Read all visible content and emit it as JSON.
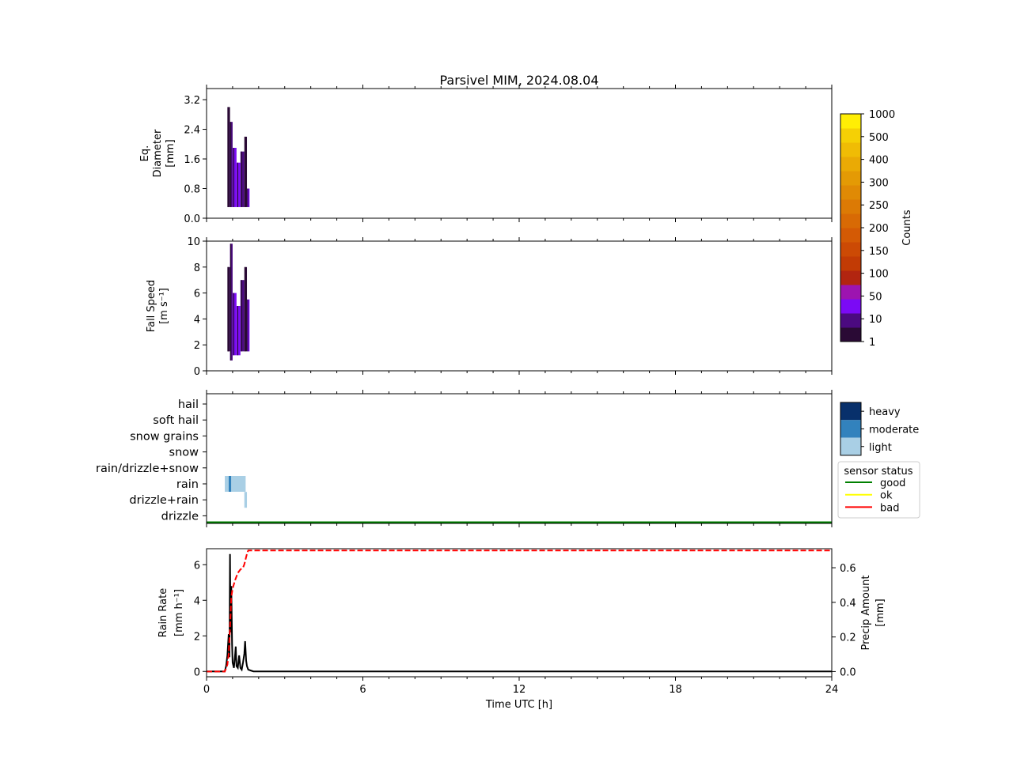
{
  "title": "Parsivel MIM, 2024.08.04",
  "chart_data": [
    {
      "id": "diameter",
      "type": "heatmap",
      "ylabel_lines": [
        "Eq.",
        "Diameter",
        "[mm]"
      ],
      "xlim": [
        0,
        24
      ],
      "ylim": [
        0,
        3.5
      ],
      "yticks": [
        0.0,
        0.8,
        1.6,
        2.4,
        3.2
      ],
      "ytick_labels": [
        "0.0",
        "0.8",
        "1.6",
        "2.4",
        "3.2"
      ],
      "description_cells": [
        {
          "x": 0.8,
          "w": 0.1,
          "y0": 0.3,
          "y1": 3.0,
          "level": 1
        },
        {
          "x": 0.9,
          "w": 0.1,
          "y0": 0.3,
          "y1": 2.6,
          "level": 2
        },
        {
          "x": 1.0,
          "w": 0.15,
          "y0": 0.3,
          "y1": 1.9,
          "level": 3
        },
        {
          "x": 1.15,
          "w": 0.15,
          "y0": 0.3,
          "y1": 1.5,
          "level": 3
        },
        {
          "x": 1.3,
          "w": 0.15,
          "y0": 0.3,
          "y1": 1.8,
          "level": 2
        },
        {
          "x": 1.45,
          "w": 0.1,
          "y0": 0.3,
          "y1": 2.2,
          "level": 1
        },
        {
          "x": 1.55,
          "w": 0.1,
          "y0": 0.3,
          "y1": 0.8,
          "level": 3
        }
      ]
    },
    {
      "id": "fallspeed",
      "type": "heatmap",
      "ylabel_lines": [
        "Fall Speed",
        "[m s⁻¹]"
      ],
      "xlim": [
        0,
        24
      ],
      "ylim": [
        0,
        10
      ],
      "yticks": [
        0,
        2,
        4,
        6,
        8,
        10
      ],
      "ytick_labels": [
        "0",
        "2",
        "4",
        "6",
        "8",
        "10"
      ],
      "description_cells": [
        {
          "x": 0.8,
          "w": 0.1,
          "y0": 1.5,
          "y1": 8.0,
          "level": 1
        },
        {
          "x": 0.9,
          "w": 0.1,
          "y0": 0.8,
          "y1": 9.8,
          "level": 2
        },
        {
          "x": 1.0,
          "w": 0.15,
          "y0": 1.2,
          "y1": 6.0,
          "level": 3
        },
        {
          "x": 1.15,
          "w": 0.15,
          "y0": 1.2,
          "y1": 5.0,
          "level": 3
        },
        {
          "x": 1.3,
          "w": 0.15,
          "y0": 1.5,
          "y1": 7.0,
          "level": 2
        },
        {
          "x": 1.45,
          "w": 0.1,
          "y0": 1.5,
          "y1": 8.0,
          "level": 1
        },
        {
          "x": 1.55,
          "w": 0.1,
          "y0": 1.5,
          "y1": 5.5,
          "level": 3
        }
      ]
    },
    {
      "id": "ptype",
      "type": "heatmap",
      "xlim": [
        0,
        24
      ],
      "categories": [
        "hail",
        "soft hail",
        "snow grains",
        "snow",
        "rain/drizzle+snow",
        "rain",
        "drizzle+rain",
        "drizzle"
      ],
      "cells": [
        {
          "x0": 0.7,
          "x1": 0.85,
          "category": "rain",
          "intensity": "light"
        },
        {
          "x0": 0.85,
          "x1": 0.95,
          "category": "rain",
          "intensity": "moderate"
        },
        {
          "x0": 0.95,
          "x1": 1.5,
          "category": "rain",
          "intensity": "light"
        },
        {
          "x0": 1.45,
          "x1": 1.55,
          "category": "drizzle+rain",
          "intensity": "light"
        }
      ],
      "intensity_legend": {
        "labels": [
          "heavy",
          "moderate",
          "light"
        ],
        "colors": [
          "#08306b",
          "#3282bd",
          "#a9cfe5"
        ]
      },
      "status_legend": {
        "title": "sensor status",
        "entries": [
          {
            "label": "good",
            "color": "#008000"
          },
          {
            "label": "ok",
            "color": "#ffff00"
          },
          {
            "label": "bad",
            "color": "#ff0000"
          }
        ]
      },
      "status_series": [
        {
          "x0": 0,
          "x1": 24,
          "status": "good"
        }
      ]
    },
    {
      "id": "rainrate",
      "type": "line",
      "xlabel": "Time UTC [h]",
      "ylabel_lines": [
        "Rain Rate",
        "[mm h⁻¹]"
      ],
      "y2label_lines": [
        "Precip Amount",
        "[mm]"
      ],
      "xlim": [
        0,
        24
      ],
      "xticks": [
        0,
        6,
        12,
        18,
        24
      ],
      "xtick_labels": [
        "0",
        "6",
        "12",
        "18",
        "24"
      ],
      "ylim": [
        -0.3,
        6.9
      ],
      "yticks": [
        0,
        2,
        4,
        6
      ],
      "ytick_labels": [
        "0",
        "2",
        "4",
        "6"
      ],
      "y2lim": [
        -0.03,
        0.71
      ],
      "y2ticks": [
        0.0,
        0.2,
        0.4,
        0.6
      ],
      "y2tick_labels": [
        "0.0",
        "0.2",
        "0.4",
        "0.6"
      ],
      "series": [
        {
          "axis": "left",
          "color": "#000000",
          "dash": "solid",
          "x": [
            0,
            0.7,
            0.75,
            0.8,
            0.85,
            0.88,
            0.9,
            0.92,
            0.95,
            0.98,
            1.0,
            1.05,
            1.1,
            1.12,
            1.15,
            1.2,
            1.25,
            1.3,
            1.35,
            1.4,
            1.45,
            1.48,
            1.52,
            1.55,
            1.6,
            1.7,
            1.8,
            24
          ],
          "y": [
            0,
            0,
            0.3,
            0.9,
            2.1,
            0.8,
            6.6,
            2.2,
            4.8,
            1.5,
            0.5,
            0.2,
            1.0,
            1.4,
            0.3,
            0.2,
            0.9,
            0.2,
            0.1,
            0.5,
            1.0,
            1.7,
            0.6,
            0.3,
            0.1,
            0.05,
            0,
            0
          ]
        },
        {
          "axis": "right",
          "color": "#ff0000",
          "dash": "dashed",
          "x": [
            0,
            0.7,
            0.8,
            0.85,
            0.9,
            0.95,
            1.0,
            1.1,
            1.2,
            1.3,
            1.4,
            1.45,
            1.5,
            1.55,
            1.6,
            24
          ],
          "y": [
            0,
            0,
            0.04,
            0.1,
            0.25,
            0.43,
            0.48,
            0.53,
            0.57,
            0.59,
            0.6,
            0.62,
            0.65,
            0.68,
            0.7,
            0.7
          ]
        }
      ]
    }
  ],
  "colorbar": {
    "label": "Counts",
    "tick_labels": [
      "1",
      "10",
      "50",
      "100",
      "150",
      "200",
      "250",
      "300",
      "400",
      "500",
      "1000"
    ],
    "colors": [
      "#2a0a35",
      "#4b0a80",
      "#7b0af5",
      "#9d14b0",
      "#b22510",
      "#c23b05",
      "#cc4a05",
      "#d45a05",
      "#d86a05",
      "#dc7a05",
      "#e08a05",
      "#e49a05",
      "#eaaa05",
      "#f0bc05",
      "#f5d005",
      "#ffee05"
    ]
  }
}
